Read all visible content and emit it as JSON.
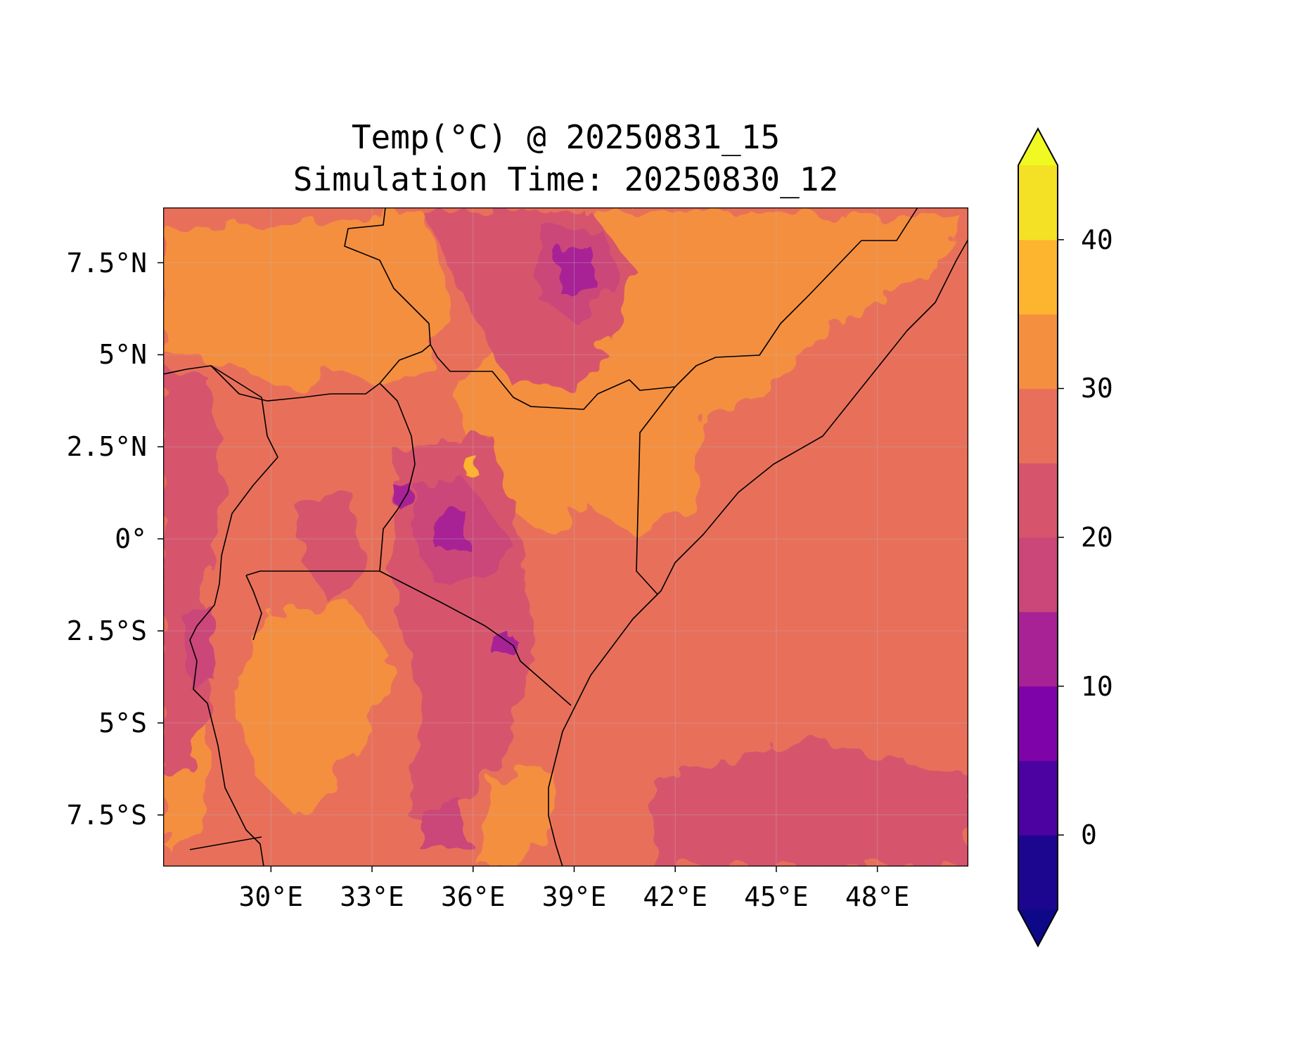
{
  "title": {
    "line1": "Temp(°C) @ 20250831_15",
    "line2": "Simulation Time: 20250830_12"
  },
  "map": {
    "type": "filled-contour map",
    "variable": "temperature",
    "units": "°C",
    "lon_range": [
      26.8,
      50.7
    ],
    "lat_range": [
      -8.9,
      9.0
    ],
    "grid": "on",
    "coastlines_and_borders": "on",
    "lat_ticks": [
      {
        "value": 7.5,
        "label": "7.5°N"
      },
      {
        "value": 5,
        "label": "5°N"
      },
      {
        "value": 2.5,
        "label": "2.5°N"
      },
      {
        "value": 0,
        "label": "0°"
      },
      {
        "value": -2.5,
        "label": "2.5°S"
      },
      {
        "value": -5,
        "label": "5°S"
      },
      {
        "value": -7.5,
        "label": "7.5°S"
      }
    ],
    "lon_ticks": [
      {
        "value": 30,
        "label": "30°E"
      },
      {
        "value": 33,
        "label": "33°E"
      },
      {
        "value": 36,
        "label": "36°E"
      },
      {
        "value": 39,
        "label": "39°E"
      },
      {
        "value": 42,
        "label": "42°E"
      },
      {
        "value": 45,
        "label": "45°E"
      },
      {
        "value": 48,
        "label": "48°E"
      }
    ]
  },
  "colorbar": {
    "levels": [
      -5,
      0,
      5,
      10,
      15,
      20,
      25,
      30,
      35,
      40,
      45
    ],
    "colors": [
      "#1d068f",
      "#4c02a1",
      "#7e03a8",
      "#a82296",
      "#cb4679",
      "#d6556d",
      "#e8705b",
      "#f48f40",
      "#fdb42f",
      "#f4e024"
    ],
    "under_color": "#0d0887",
    "over_color": "#f0f921",
    "extend": "both",
    "ticks": [
      {
        "value": 0,
        "label": "0"
      },
      {
        "value": 10,
        "label": "10"
      },
      {
        "value": 20,
        "label": "20"
      },
      {
        "value": 30,
        "label": "30"
      },
      {
        "value": 40,
        "label": "40"
      }
    ]
  }
}
